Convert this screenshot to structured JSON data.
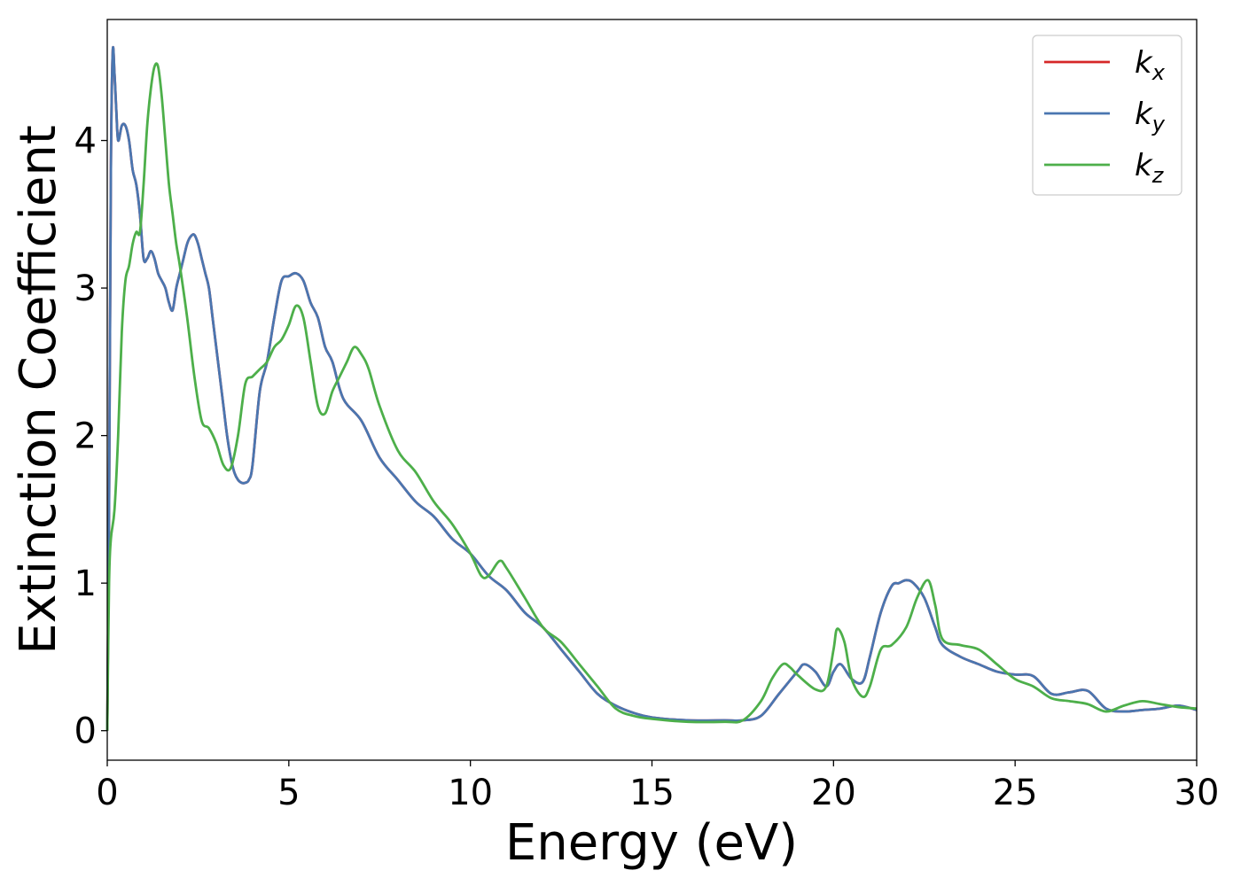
{
  "chart_data": {
    "type": "line",
    "title": "",
    "xlabel": "Energy (eV)",
    "ylabel": "Extinction Coefficient",
    "xlim": [
      0,
      30
    ],
    "ylim": [
      -0.2,
      4.82
    ],
    "xticks": [
      0,
      5,
      10,
      15,
      20,
      25,
      30
    ],
    "yticks": [
      0,
      1,
      2,
      3,
      4
    ],
    "xtick_labels": [
      "0",
      "5",
      "10",
      "15",
      "20",
      "25",
      "30"
    ],
    "ytick_labels": [
      "0",
      "1",
      "2",
      "3",
      "4"
    ],
    "grid": false,
    "legend_position": "top-right",
    "series": [
      {
        "name": "kx",
        "label_base": "k",
        "label_sub": "x",
        "color": "#d62728",
        "x": [
          0,
          0.05,
          0.1,
          0.15,
          0.2,
          0.25,
          0.3,
          0.4,
          0.5,
          0.6,
          0.7,
          0.8,
          0.9,
          1.0,
          1.1,
          1.2,
          1.3,
          1.4,
          1.5,
          1.6,
          1.7,
          1.8,
          1.9,
          2.0,
          2.1,
          2.2,
          2.3,
          2.4,
          2.5,
          2.6,
          2.7,
          2.8,
          2.9,
          3.0,
          3.1,
          3.2,
          3.3,
          3.4,
          3.5,
          3.6,
          3.7,
          3.8,
          3.9,
          4.0,
          4.2,
          4.4,
          4.6,
          4.8,
          5.0,
          5.2,
          5.4,
          5.6,
          5.8,
          6.0,
          6.2,
          6.5,
          7.0,
          7.5,
          8.0,
          8.5,
          9.0,
          9.5,
          10.0,
          10.5,
          11.0,
          11.5,
          12.0,
          12.5,
          13.0,
          13.5,
          14.0,
          14.5,
          15.0,
          16.0,
          17.0,
          17.5,
          18.0,
          18.5,
          19.0,
          19.2,
          19.5,
          19.8,
          20.0,
          20.2,
          20.5,
          20.8,
          21.0,
          21.3,
          21.6,
          21.8,
          22.0,
          22.2,
          22.5,
          22.8,
          23.0,
          23.5,
          24.0,
          24.5,
          25.0,
          25.5,
          26.0,
          26.5,
          27.0,
          27.5,
          28.0,
          28.5,
          29.0,
          29.5,
          30.0
        ],
        "values": [
          0,
          1.5,
          3.8,
          4.6,
          4.45,
          4.2,
          4.0,
          4.1,
          4.1,
          4.0,
          3.8,
          3.7,
          3.5,
          3.2,
          3.2,
          3.25,
          3.2,
          3.1,
          3.05,
          3.0,
          2.9,
          2.85,
          3.0,
          3.1,
          3.2,
          3.3,
          3.35,
          3.36,
          3.3,
          3.2,
          3.1,
          3.0,
          2.8,
          2.6,
          2.4,
          2.2,
          2.0,
          1.85,
          1.75,
          1.7,
          1.68,
          1.68,
          1.7,
          1.8,
          2.3,
          2.5,
          2.8,
          3.05,
          3.08,
          3.1,
          3.05,
          2.9,
          2.8,
          2.6,
          2.5,
          2.25,
          2.1,
          1.85,
          1.7,
          1.55,
          1.45,
          1.3,
          1.2,
          1.05,
          0.95,
          0.8,
          0.7,
          0.55,
          0.4,
          0.25,
          0.17,
          0.12,
          0.09,
          0.07,
          0.07,
          0.07,
          0.1,
          0.25,
          0.4,
          0.45,
          0.4,
          0.3,
          0.4,
          0.45,
          0.35,
          0.33,
          0.5,
          0.8,
          0.98,
          1.0,
          1.02,
          1.0,
          0.9,
          0.7,
          0.58,
          0.5,
          0.45,
          0.4,
          0.38,
          0.37,
          0.25,
          0.26,
          0.27,
          0.15,
          0.13,
          0.14,
          0.15,
          0.17,
          0.14
        ]
      },
      {
        "name": "ky",
        "label_base": "k",
        "label_sub": "y",
        "color": "#4a76b0",
        "x": [
          0,
          0.05,
          0.1,
          0.15,
          0.2,
          0.25,
          0.3,
          0.4,
          0.5,
          0.6,
          0.7,
          0.8,
          0.9,
          1.0,
          1.1,
          1.2,
          1.3,
          1.4,
          1.5,
          1.6,
          1.7,
          1.8,
          1.9,
          2.0,
          2.1,
          2.2,
          2.3,
          2.4,
          2.5,
          2.6,
          2.7,
          2.8,
          2.9,
          3.0,
          3.1,
          3.2,
          3.3,
          3.4,
          3.5,
          3.6,
          3.7,
          3.8,
          3.9,
          4.0,
          4.2,
          4.4,
          4.6,
          4.8,
          5.0,
          5.2,
          5.4,
          5.6,
          5.8,
          6.0,
          6.2,
          6.5,
          7.0,
          7.5,
          8.0,
          8.5,
          9.0,
          9.5,
          10.0,
          10.5,
          11.0,
          11.5,
          12.0,
          12.5,
          13.0,
          13.5,
          14.0,
          14.5,
          15.0,
          16.0,
          17.0,
          17.5,
          18.0,
          18.5,
          19.0,
          19.2,
          19.5,
          19.8,
          20.0,
          20.2,
          20.5,
          20.8,
          21.0,
          21.3,
          21.6,
          21.8,
          22.0,
          22.2,
          22.5,
          22.8,
          23.0,
          23.5,
          24.0,
          24.5,
          25.0,
          25.5,
          26.0,
          26.5,
          27.0,
          27.5,
          28.0,
          28.5,
          29.0,
          29.5,
          30.0
        ],
        "values": [
          0,
          1.5,
          3.8,
          4.6,
          4.45,
          4.2,
          4.0,
          4.1,
          4.1,
          4.0,
          3.8,
          3.7,
          3.5,
          3.2,
          3.2,
          3.25,
          3.2,
          3.1,
          3.05,
          3.0,
          2.9,
          2.85,
          3.0,
          3.1,
          3.2,
          3.3,
          3.35,
          3.36,
          3.3,
          3.2,
          3.1,
          3.0,
          2.8,
          2.6,
          2.4,
          2.2,
          2.0,
          1.85,
          1.75,
          1.7,
          1.68,
          1.68,
          1.7,
          1.8,
          2.3,
          2.5,
          2.8,
          3.05,
          3.08,
          3.1,
          3.05,
          2.9,
          2.8,
          2.6,
          2.5,
          2.25,
          2.1,
          1.85,
          1.7,
          1.55,
          1.45,
          1.3,
          1.2,
          1.05,
          0.95,
          0.8,
          0.7,
          0.55,
          0.4,
          0.25,
          0.17,
          0.12,
          0.09,
          0.07,
          0.07,
          0.07,
          0.1,
          0.25,
          0.4,
          0.45,
          0.4,
          0.3,
          0.4,
          0.45,
          0.35,
          0.33,
          0.5,
          0.8,
          0.98,
          1.0,
          1.02,
          1.0,
          0.9,
          0.7,
          0.58,
          0.5,
          0.45,
          0.4,
          0.38,
          0.37,
          0.25,
          0.26,
          0.27,
          0.15,
          0.13,
          0.14,
          0.15,
          0.17,
          0.14
        ]
      },
      {
        "name": "kz",
        "label_base": "k",
        "label_sub": "z",
        "color": "#4daf4a",
        "x": [
          0,
          0.05,
          0.1,
          0.2,
          0.3,
          0.4,
          0.5,
          0.6,
          0.7,
          0.8,
          0.9,
          1.0,
          1.1,
          1.2,
          1.3,
          1.4,
          1.5,
          1.6,
          1.7,
          1.8,
          1.9,
          2.0,
          2.2,
          2.4,
          2.6,
          2.8,
          3.0,
          3.2,
          3.4,
          3.6,
          3.8,
          4.0,
          4.2,
          4.4,
          4.6,
          4.8,
          5.0,
          5.2,
          5.4,
          5.6,
          5.8,
          6.0,
          6.2,
          6.4,
          6.6,
          6.8,
          7.0,
          7.2,
          7.5,
          8.0,
          8.5,
          9.0,
          9.5,
          10.0,
          10.3,
          10.5,
          10.8,
          11.0,
          11.5,
          12.0,
          12.5,
          13.0,
          13.5,
          14.0,
          14.5,
          15.0,
          16.0,
          17.0,
          17.5,
          18.0,
          18.3,
          18.6,
          18.8,
          19.0,
          19.5,
          19.8,
          20.0,
          20.1,
          20.3,
          20.5,
          20.8,
          21.0,
          21.3,
          21.6,
          22.0,
          22.3,
          22.6,
          22.8,
          23.0,
          23.5,
          24.0,
          24.5,
          25.0,
          25.5,
          26.0,
          26.5,
          27.0,
          27.5,
          28.0,
          28.5,
          29.0,
          29.5,
          30.0
        ],
        "values": [
          0,
          1.0,
          1.3,
          1.5,
          2.0,
          2.7,
          3.05,
          3.15,
          3.3,
          3.38,
          3.38,
          3.7,
          4.1,
          4.35,
          4.5,
          4.5,
          4.3,
          4.0,
          3.7,
          3.5,
          3.3,
          3.15,
          2.8,
          2.4,
          2.1,
          2.05,
          1.95,
          1.8,
          1.78,
          2.0,
          2.35,
          2.4,
          2.45,
          2.5,
          2.6,
          2.65,
          2.75,
          2.88,
          2.8,
          2.5,
          2.2,
          2.15,
          2.3,
          2.4,
          2.5,
          2.6,
          2.55,
          2.45,
          2.2,
          1.9,
          1.75,
          1.55,
          1.4,
          1.2,
          1.05,
          1.05,
          1.15,
          1.1,
          0.9,
          0.7,
          0.6,
          0.45,
          0.3,
          0.15,
          0.1,
          0.08,
          0.06,
          0.06,
          0.07,
          0.2,
          0.35,
          0.45,
          0.43,
          0.38,
          0.28,
          0.3,
          0.55,
          0.69,
          0.6,
          0.35,
          0.23,
          0.3,
          0.55,
          0.58,
          0.7,
          0.9,
          1.02,
          0.85,
          0.62,
          0.58,
          0.55,
          0.45,
          0.35,
          0.3,
          0.22,
          0.2,
          0.18,
          0.13,
          0.17,
          0.2,
          0.18,
          0.16,
          0.15
        ]
      }
    ]
  }
}
